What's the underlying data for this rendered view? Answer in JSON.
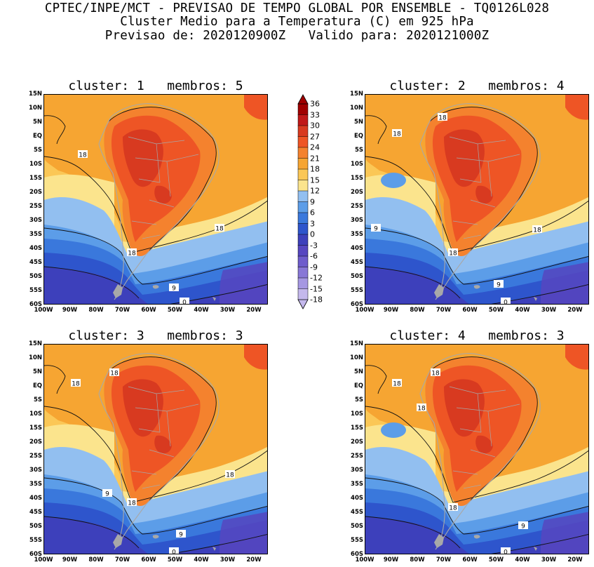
{
  "header": {
    "line1": "CPTEC/INPE/MCT - PREVISAO DE TEMPO GLOBAL POR ENSEMBLE - TQ0126L028",
    "line2": "Cluster Medio para a Temperatura (C) em 925 hPa",
    "line3": "Previsao de: 2020120900Z   Valido para: 2020121000Z"
  },
  "axes": {
    "lat_labels": [
      "15N",
      "10N",
      "5N",
      "EQ",
      "5S",
      "10S",
      "15S",
      "20S",
      "25S",
      "30S",
      "35S",
      "40S",
      "45S",
      "50S",
      "55S",
      "60S"
    ],
    "lon_labels": [
      "100W",
      "90W",
      "80W",
      "70W",
      "60W",
      "50W",
      "40W",
      "30W",
      "20W"
    ]
  },
  "colorbar": {
    "labels": [
      "36",
      "33",
      "30",
      "27",
      "24",
      "21",
      "18",
      "15",
      "12",
      "9",
      "6",
      "3",
      "0",
      "-3",
      "-6",
      "-9",
      "-12",
      "-15",
      "-18"
    ],
    "colors": [
      "#a00000",
      "#c01818",
      "#d83a20",
      "#ee5525",
      "#f4822e",
      "#f6a532",
      "#fbc756",
      "#fbe48d",
      "#92bff0",
      "#5c9de8",
      "#3a78dc",
      "#2e55cc",
      "#3d40bb",
      "#5646c0",
      "#6e5ccc",
      "#8877d6",
      "#a597e2",
      "#c4b8ec"
    ]
  },
  "panels": [
    {
      "title": "cluster: 1   membros: 5",
      "contour_labels": [
        "18",
        "18",
        "18",
        "9",
        "0"
      ]
    },
    {
      "title": "cluster: 2   membros: 4",
      "contour_labels": [
        "18",
        "18",
        "18",
        "9",
        "18",
        "9",
        "0"
      ]
    },
    {
      "title": "cluster: 3   membros: 3",
      "contour_labels": [
        "18",
        "18",
        "18",
        "9",
        "18",
        "9",
        "0"
      ]
    },
    {
      "title": "cluster: 4   membros: 3",
      "contour_labels": [
        "18",
        "18",
        "18",
        "18",
        "9",
        "0"
      ]
    }
  ]
}
